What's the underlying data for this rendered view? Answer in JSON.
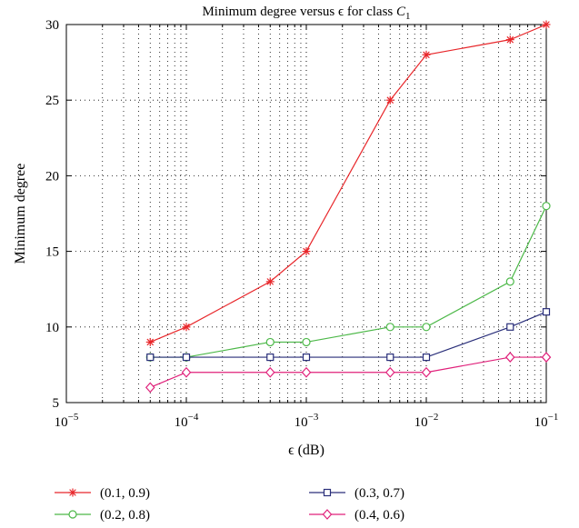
{
  "chart_data": {
    "type": "line",
    "title": "Minimum degree versus ϵ for class C₁",
    "xlabel": "ϵ (dB)",
    "ylabel": "Minimum degree",
    "x_scale": "log",
    "xlim": [
      1e-05,
      0.1
    ],
    "ylim": [
      5,
      30
    ],
    "x_ticks": [
      {
        "value": 1e-05,
        "base": "10",
        "exp": "−5"
      },
      {
        "value": 0.0001,
        "base": "10",
        "exp": "−4"
      },
      {
        "value": 0.001,
        "base": "10",
        "exp": "−3"
      },
      {
        "value": 0.01,
        "base": "10",
        "exp": "−2"
      },
      {
        "value": 0.1,
        "base": "10",
        "exp": "−1"
      }
    ],
    "y_ticks": [
      5,
      10,
      15,
      20,
      25,
      30
    ],
    "grid": true,
    "legend_position": "below",
    "x": [
      5e-05,
      0.0001,
      0.0005,
      0.001,
      0.005,
      0.01,
      0.05,
      0.1
    ],
    "series": [
      {
        "name": "(0.1, 0.9)",
        "color": "#e8262a",
        "marker": "star",
        "values": [
          9,
          10,
          13,
          15,
          25,
          28,
          29,
          30
        ]
      },
      {
        "name": "(0.2, 0.8)",
        "color": "#4cb848",
        "marker": "circle",
        "values": [
          8,
          8,
          9,
          9,
          10,
          10,
          13,
          18
        ]
      },
      {
        "name": "(0.3, 0.7)",
        "color": "#2a2f7a",
        "marker": "square",
        "values": [
          8,
          8,
          8,
          8,
          8,
          8,
          10,
          11
        ]
      },
      {
        "name": "(0.4, 0.6)",
        "color": "#e0207a",
        "marker": "diamond",
        "values": [
          6,
          7,
          7,
          7,
          7,
          7,
          8,
          8
        ]
      }
    ]
  }
}
